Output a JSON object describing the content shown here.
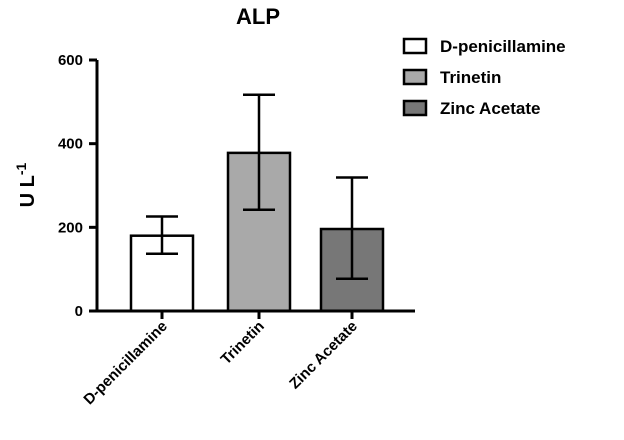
{
  "chart_data": {
    "type": "bar",
    "title": "ALP",
    "ylabel": "U L",
    "ylabel_superscript": "-1",
    "xlabel": "",
    "categories": [
      "D-penicillamine",
      "Trinetin",
      "Zinc Acetate"
    ],
    "values": [
      180,
      378,
      196
    ],
    "error_lower": [
      137,
      242,
      77
    ],
    "error_upper": [
      226,
      517,
      319
    ],
    "ylim": [
      0,
      600
    ],
    "yticks": [
      0,
      200,
      400,
      600
    ],
    "ytick_labels": [
      "0",
      "200",
      "400",
      "600"
    ],
    "colors": [
      "#ffffff",
      "#a9a9a9",
      "#777777"
    ],
    "legend": {
      "placement": "top-right",
      "entries": [
        "D-penicillamine",
        "Trinetin",
        "Zinc Acetate"
      ]
    },
    "grid": false
  }
}
